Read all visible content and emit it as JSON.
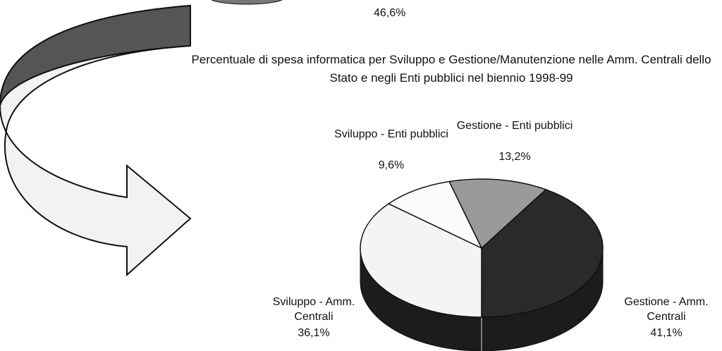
{
  "chart_data": {
    "type": "pie",
    "title": "Percentuale di spesa informatica per Sviluppo e Gestione/Manutenzione nelle Amm. Centrali dello Stato e negli Enti pubblici nel biennio 1998-99",
    "annotations": [
      "46,6%"
    ],
    "categories": [
      "Gestione - Enti pubblici",
      "Gestione - Amm. Centrali",
      "Sviluppo - Amm. Centrali",
      "Sviluppo - Enti pubblici"
    ],
    "values": [
      13.2,
      41.1,
      36.1,
      9.6
    ],
    "value_labels": [
      "13,2%",
      "41,1%",
      "36,1%",
      "9,6%"
    ],
    "colors": [
      "#9a9a9a",
      "#2a2a2a",
      "#f4f4f4",
      "#fbfbfb"
    ]
  }
}
